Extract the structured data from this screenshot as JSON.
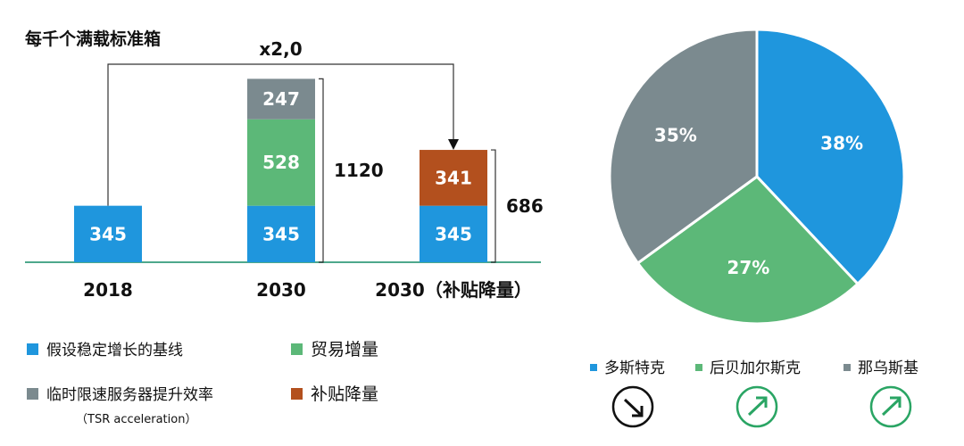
{
  "colors": {
    "blue": "#1f96dd",
    "green": "#5cb878",
    "gray": "#7b8a8f",
    "orange": "#b3501e",
    "axis": "#4ea88c",
    "teal_icon": "#2aa564",
    "dark_icon": "#111111"
  },
  "chart_data": [
    {
      "type": "bar",
      "stacked": true,
      "title": "每千个满载标准箱",
      "categories": [
        "2018",
        "2030",
        "2030（补贴降量）"
      ],
      "series": [
        {
          "key": "baseline",
          "name": "假设稳定增长的基线",
          "color": "#1f96dd",
          "values": [
            345,
            345,
            345
          ]
        },
        {
          "key": "trade",
          "name": "贸易增量",
          "color": "#5cb878",
          "values": [
            0,
            528,
            0
          ]
        },
        {
          "key": "tsr",
          "name": "临时限速服务器提升效率",
          "color": "#7b8a8f",
          "values": [
            0,
            247,
            0
          ]
        },
        {
          "key": "subsidy",
          "name": "补贴降量",
          "color": "#b3501e",
          "values": [
            0,
            0,
            341
          ]
        }
      ],
      "totals": [
        "",
        "1120",
        "686"
      ],
      "annotation": "x2,0",
      "legend_note": "（TSR acceleration）"
    },
    {
      "type": "pie",
      "slices": [
        {
          "name": "多斯特克",
          "value": 38,
          "label": "38%",
          "color": "#1f96dd",
          "trend": "down"
        },
        {
          "name": "后贝加尔斯克",
          "value": 27,
          "label": "27%",
          "color": "#5cb878",
          "trend": "up"
        },
        {
          "name": "那乌斯基",
          "value": 35,
          "label": "35%",
          "color": "#7b8a8f",
          "trend": "up"
        }
      ]
    }
  ]
}
